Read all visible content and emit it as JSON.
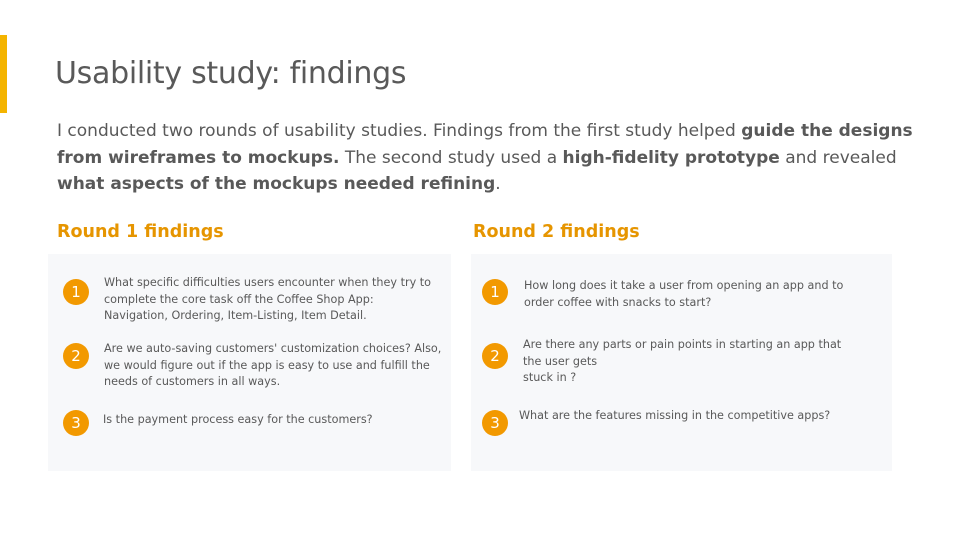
{
  "slide": {
    "title": "Usability study: findings",
    "intro": [
      {
        "text": "I conducted two rounds of usability studies. Findings from the first study helped ",
        "bold": false
      },
      {
        "text": "guide the designs from wireframes to mockups.",
        "bold": true
      },
      {
        "text": " The second study used a ",
        "bold": false
      },
      {
        "text": "high-fidelity prototype",
        "bold": true
      },
      {
        "text": " and revealed ",
        "bold": false
      },
      {
        "text": "what aspects of the mockups needed refining",
        "bold": true
      },
      {
        "text": ".",
        "bold": false
      }
    ],
    "accent_color": "#f4b400",
    "heading_color": "#e69500",
    "badge_color": "#f29900"
  },
  "round1": {
    "heading": "Round 1 findings",
    "items": [
      {
        "number": "1",
        "text": "What specific difficulties users encounter when they try to complete the core task off the Coffee Shop App: Navigation, Ordering, Item-Listing, Item Detail."
      },
      {
        "number": "2",
        "text": "Are we auto-saving customers' customization choices? Also, we would figure out if the app is easy to use and fulfill the needs of customers in all ways."
      },
      {
        "number": "3",
        "text": "Is the payment process easy for the customers?"
      }
    ]
  },
  "round2": {
    "heading": "Round 2 findings",
    "items": [
      {
        "number": "1",
        "text": "How long does it take a user from opening an app and to order coffee with snacks to start?"
      },
      {
        "number": "2",
        "text": "Are there any parts or pain points in starting an app that the user gets\nstuck in ?"
      },
      {
        "number": "3",
        "text": "What are the features missing in the competitive apps?"
      }
    ]
  }
}
